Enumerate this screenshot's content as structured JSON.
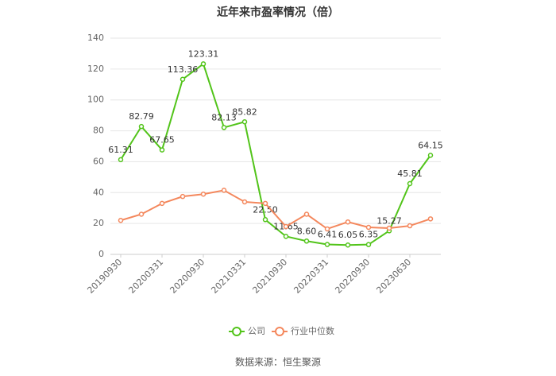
{
  "chart_data": {
    "type": "line",
    "title": "近年来市盈率情况（倍）",
    "source": "数据来源：恒生聚源",
    "categories": [
      "20190930",
      null,
      "20200331",
      null,
      "20200930",
      null,
      "20210331",
      null,
      "20210930",
      null,
      "20220331",
      null,
      "20220930",
      null,
      "20230630",
      null
    ],
    "series": [
      {
        "name": "公司",
        "color": "#52c41a",
        "values": [
          61.31,
          82.79,
          67.65,
          113.36,
          123.31,
          82.13,
          85.82,
          22.5,
          11.65,
          8.6,
          6.41,
          6.05,
          6.35,
          15.27,
          45.81,
          64.15
        ],
        "value_labels": [
          "61.31",
          "82.79",
          "67.65",
          "113.36",
          "123.31",
          "82.13",
          "85.82",
          "22.50",
          "11.65",
          "8.60",
          "6.41",
          "6.05",
          "6.35",
          "15.27",
          "45.81",
          "64.15"
        ]
      },
      {
        "name": "行业中位数",
        "color": "#f4875c",
        "values": [
          22,
          26,
          33,
          37.5,
          39,
          41.5,
          34,
          33,
          18,
          26,
          16.5,
          21,
          17.5,
          17,
          18.5,
          23
        ]
      }
    ],
    "ylim": [
      0,
      140
    ],
    "yticks": [
      0,
      20,
      40,
      60,
      80,
      100,
      120,
      140
    ],
    "grid": true
  }
}
